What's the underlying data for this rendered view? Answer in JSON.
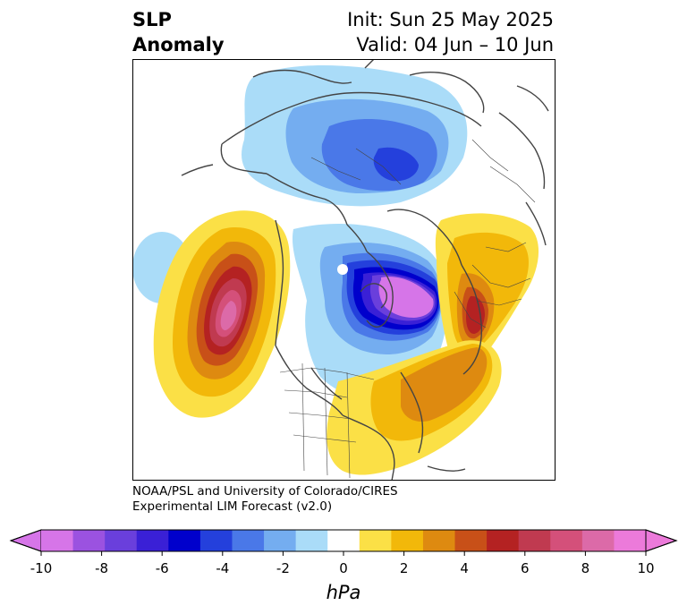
{
  "header": {
    "title_line1": "SLP",
    "title_line2": "Anomaly",
    "init_text": "Init: Sun 25 May 2025",
    "valid_text": "Valid: 04 Jun – 10 Jun"
  },
  "credit": {
    "line1": "NOAA/PSL and University of Colorado/CIRES",
    "line2": "Experimental LIM Forecast (v2.0)"
  },
  "colorbar": {
    "unit_label": "hPa",
    "tick_labels": [
      "-10",
      "-8",
      "-6",
      "-4",
      "-2",
      "0",
      "2",
      "4",
      "6",
      "8",
      "10"
    ],
    "bins": [
      {
        "range": "<-10",
        "color": "#d675e8"
      },
      {
        "range": "-10 to -9",
        "color": "#d675e8"
      },
      {
        "range": "-9 to -8",
        "color": "#9b52e0"
      },
      {
        "range": "-8 to -7",
        "color": "#6a3fdc"
      },
      {
        "range": "-7 to -6",
        "color": "#3a20d6"
      },
      {
        "range": "-6 to -5",
        "color": "#0000cc"
      },
      {
        "range": "-5 to -4",
        "color": "#2440dc"
      },
      {
        "range": "-4 to -3",
        "color": "#4a78e8"
      },
      {
        "range": "-3 to -2",
        "color": "#74adf0"
      },
      {
        "range": "-2 to -1",
        "color": "#aadcf8"
      },
      {
        "range": "-1 to 1",
        "color": "#ffffff"
      },
      {
        "range": "1 to 2",
        "color": "#fbe046"
      },
      {
        "range": "2 to 3",
        "color": "#f2b80a"
      },
      {
        "range": "3 to 4",
        "color": "#de8a10"
      },
      {
        "range": "4 to 5",
        "color": "#c85018"
      },
      {
        "range": "5 to 6",
        "color": "#b42222"
      },
      {
        "range": "6 to 7",
        "color": "#c03a50"
      },
      {
        "range": "7 to 8",
        "color": "#d4507a"
      },
      {
        "range": "8 to 9",
        "color": "#dc6aa8"
      },
      {
        "range": "9 to 10",
        "color": "#ec7ada"
      },
      {
        "range": ">10",
        "color": "#ec7ada"
      }
    ]
  },
  "map_features": {
    "projection": "polar stereographic, North Pole",
    "anomalies": [
      {
        "name": "negative-center-north-atlantic",
        "sign": "negative",
        "peak_hpa": -10
      },
      {
        "name": "negative-arctic",
        "sign": "negative",
        "peak_hpa": -5
      },
      {
        "name": "negative-pacific-west",
        "sign": "negative",
        "peak_hpa": -2
      },
      {
        "name": "positive-north-pacific",
        "sign": "positive",
        "peak_hpa": 9
      },
      {
        "name": "positive-eurasia-west",
        "sign": "positive",
        "peak_hpa": 6
      },
      {
        "name": "positive-east-north-america",
        "sign": "positive",
        "peak_hpa": 4
      }
    ]
  }
}
